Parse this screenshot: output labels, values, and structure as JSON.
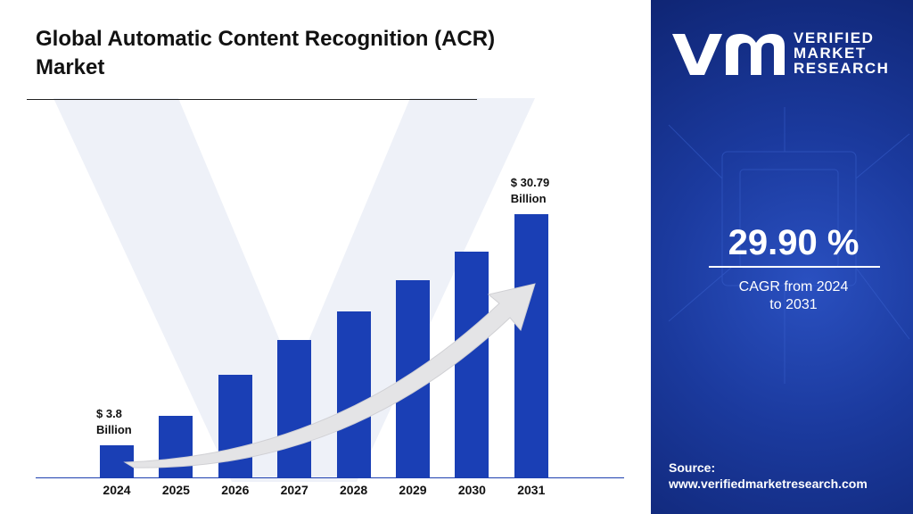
{
  "chart_data": {
    "type": "bar",
    "title": "Global Automatic Content Recognition (ACR) Market",
    "categories": [
      "2024",
      "2025",
      "2026",
      "2027",
      "2028",
      "2029",
      "2030",
      "2031"
    ],
    "values": [
      3.8,
      7.2,
      12.0,
      16.1,
      19.4,
      23.1,
      26.4,
      30.79
    ],
    "value_labels": [
      "$ 3.8 Billion",
      null,
      null,
      null,
      null,
      null,
      null,
      "$ 30.79 Billion"
    ],
    "color": "#1a3fb5"
  },
  "sidebar": {
    "brand": [
      "VERIFIED",
      "MARKET",
      "RESEARCH"
    ],
    "cagr_value": "29.90 %",
    "cagr_text": "CAGR from 2024 to 2031",
    "source_label": "Source:",
    "source_url": "www.verifiedmarketresearch.com"
  }
}
